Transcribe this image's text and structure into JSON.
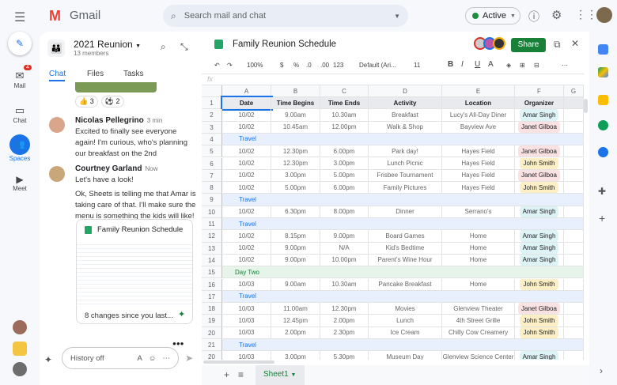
{
  "topbar": {
    "app_name": "Gmail",
    "search_placeholder": "Search mail and chat",
    "status": "Active"
  },
  "rail": {
    "mail": "Mail",
    "mail_badge": "4",
    "chat": "Chat",
    "spaces": "Spaces",
    "meet": "Meet"
  },
  "space": {
    "title": "2021 Reunion",
    "members": "13 members",
    "tabs": [
      "Chat",
      "Files",
      "Tasks"
    ],
    "reactions": [
      {
        "emoji": "👍",
        "count": "3"
      },
      {
        "emoji": "⚽",
        "count": "2"
      }
    ],
    "messages": [
      {
        "author": "Nicolas Pellegrino",
        "time": "3 min",
        "text": "Excited to finally see everyone again! I'm curious, who's planning our breakfast on the 2nd"
      },
      {
        "author": "Courtney Garland",
        "time": "Now",
        "text": "Let's have a look!",
        "text2": "Ok, Sheets is telling me that Amar is taking care of that. I'll make sure the menu is something the kids will like!"
      }
    ],
    "card": {
      "title": "Family Reunion Schedule",
      "summary": "8 changes since you last..."
    },
    "composer_placeholder": "History off"
  },
  "sheet": {
    "title": "Family Reunion Schedule",
    "share": "Share",
    "toolbar": {
      "zoom": "100%",
      "currency": "$",
      "percent": "%",
      "dec_less": ".0",
      "dec_more": ".00",
      "format": "123",
      "font": "Default (Ari...",
      "size": "11"
    },
    "fx": "fx",
    "columns": [
      "A",
      "B",
      "C",
      "D",
      "E",
      "F",
      "G"
    ],
    "row_numbers": [
      "1",
      "2",
      "3",
      "4",
      "5",
      "6",
      "7",
      "8",
      "9",
      "10",
      "11",
      "12",
      "13",
      "14",
      "15",
      "16",
      "17",
      "18",
      "19",
      "20",
      "21",
      "20"
    ],
    "headers": [
      "Date",
      "Time Begins",
      "Time Ends",
      "Activity",
      "Location",
      "Organizer"
    ],
    "rows": [
      [
        "10/02",
        "9.00am",
        "10.30am",
        "Breakfast",
        "Lucy's All-Day Diner",
        "Amar Singh"
      ],
      [
        "10/02",
        "10.45am",
        "12.00pm",
        "Walk & Shop",
        "Bayview Ave",
        "Janet Gilboa"
      ],
      [
        "Travel"
      ],
      [
        "10/02",
        "12.30pm",
        "6.00pm",
        "Park day!",
        "Hayes Field",
        "Janet Gilboa"
      ],
      [
        "10/02",
        "12.30pm",
        "3.00pm",
        "Lunch Picnic",
        "Hayes Field",
        "John Smith"
      ],
      [
        "10/02",
        "3.00pm",
        "5.00pm",
        "Frisbee Tournament",
        "Hayes Field",
        "Janet Gilboa"
      ],
      [
        "10/02",
        "5.00pm",
        "6.00pm",
        "Family Pictures",
        "Hayes Field",
        "John Smith"
      ],
      [
        "Travel"
      ],
      [
        "10/02",
        "6.30pm",
        "8.00pm",
        "Dinner",
        "Serrano's",
        "Amar Singh"
      ],
      [
        "Travel"
      ],
      [
        "10/02",
        "8.15pm",
        "9.00pm",
        "Board Games",
        "Home",
        "Amar Singh"
      ],
      [
        "10/02",
        "9.00pm",
        "N/A",
        "Kid's Bedtime",
        "Home",
        "Amar Singh"
      ],
      [
        "10/02",
        "9.00pm",
        "10.00pm",
        "Parent's Wine Hour",
        "Home",
        "Amar Singh"
      ],
      [
        "Day Two"
      ],
      [
        "10/03",
        "9.00am",
        "10.30am",
        "Pancake Breakfast",
        "Home",
        "John Smith"
      ],
      [
        "Travel"
      ],
      [
        "10/03",
        "11.00am",
        "12.30pm",
        "Movies",
        "Glenview Theater",
        "Janet Gilboa"
      ],
      [
        "10/03",
        "12.45pm",
        "2.00pm",
        "Lunch",
        "4th Street Grille",
        "John Smith"
      ],
      [
        "10/03",
        "2.00pm",
        "2.30pm",
        "Ice Cream",
        "Chilly Cow Creamery",
        "John Smith"
      ],
      [
        "Travel"
      ],
      [
        "10/03",
        "3.00pm",
        "5.30pm",
        "Museum Day",
        "Glenview Science Center",
        "Amar Singh"
      ]
    ],
    "organizer_colors": {
      "Amar Singh": "#def3f6",
      "Janet Gilboa": "#fbe2e2",
      "John Smith": "#fcefc5"
    },
    "sheet_tab": "Sheet1"
  },
  "colors": {
    "accent": "#1a73e8",
    "share": "#188038",
    "travel_band": "#e8f0fe",
    "daytwo_band": "#e6f4ea"
  }
}
